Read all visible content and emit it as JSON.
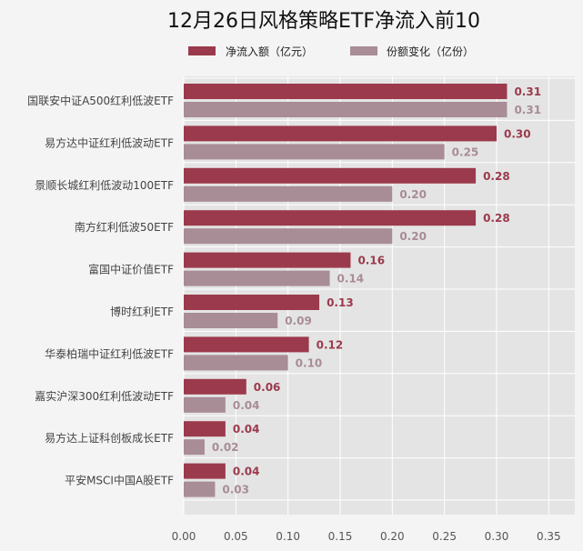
{
  "chart_data": {
    "type": "bar",
    "orientation": "horizontal",
    "title": "12月26日风格策略ETF净流入前10",
    "xlabel": "",
    "ylabel": "",
    "categories": [
      "国联安中证A500红利低波ETF",
      "易方达中证红利低波动ETF",
      "景顺长城红利低波动100ETF",
      "南方红利低波50ETF",
      "富国中证价值ETF",
      "博时红利ETF",
      "华泰柏瑞中证红利低波ETF",
      "嘉实沪深300红利低波动ETF",
      "易方达上证科创板成长ETF",
      "平安MSCI中国A股ETF"
    ],
    "series": [
      {
        "name": "净流入额（亿元）",
        "color": "#9b3a4c",
        "values": [
          0.31,
          0.3,
          0.28,
          0.28,
          0.16,
          0.13,
          0.12,
          0.06,
          0.04,
          0.04
        ],
        "labels": [
          "0.31",
          "0.30",
          "0.28",
          "0.28",
          "0.16",
          "0.13",
          "0.12",
          "0.06",
          "0.04",
          "0.04"
        ]
      },
      {
        "name": "份额变化（亿份）",
        "color": "#a88c96",
        "values": [
          0.31,
          0.25,
          0.2,
          0.2,
          0.14,
          0.09,
          0.1,
          0.04,
          0.02,
          0.03
        ],
        "labels": [
          "0.31",
          "0.25",
          "0.20",
          "0.20",
          "0.14",
          "0.09",
          "0.10",
          "0.04",
          "0.02",
          "0.03"
        ]
      }
    ],
    "xlim": [
      0,
      0.375
    ],
    "xticks": [
      "0.00",
      "0.05",
      "0.10",
      "0.15",
      "0.20",
      "0.25",
      "0.30",
      "0.35"
    ],
    "grid": true,
    "legend": "top"
  }
}
